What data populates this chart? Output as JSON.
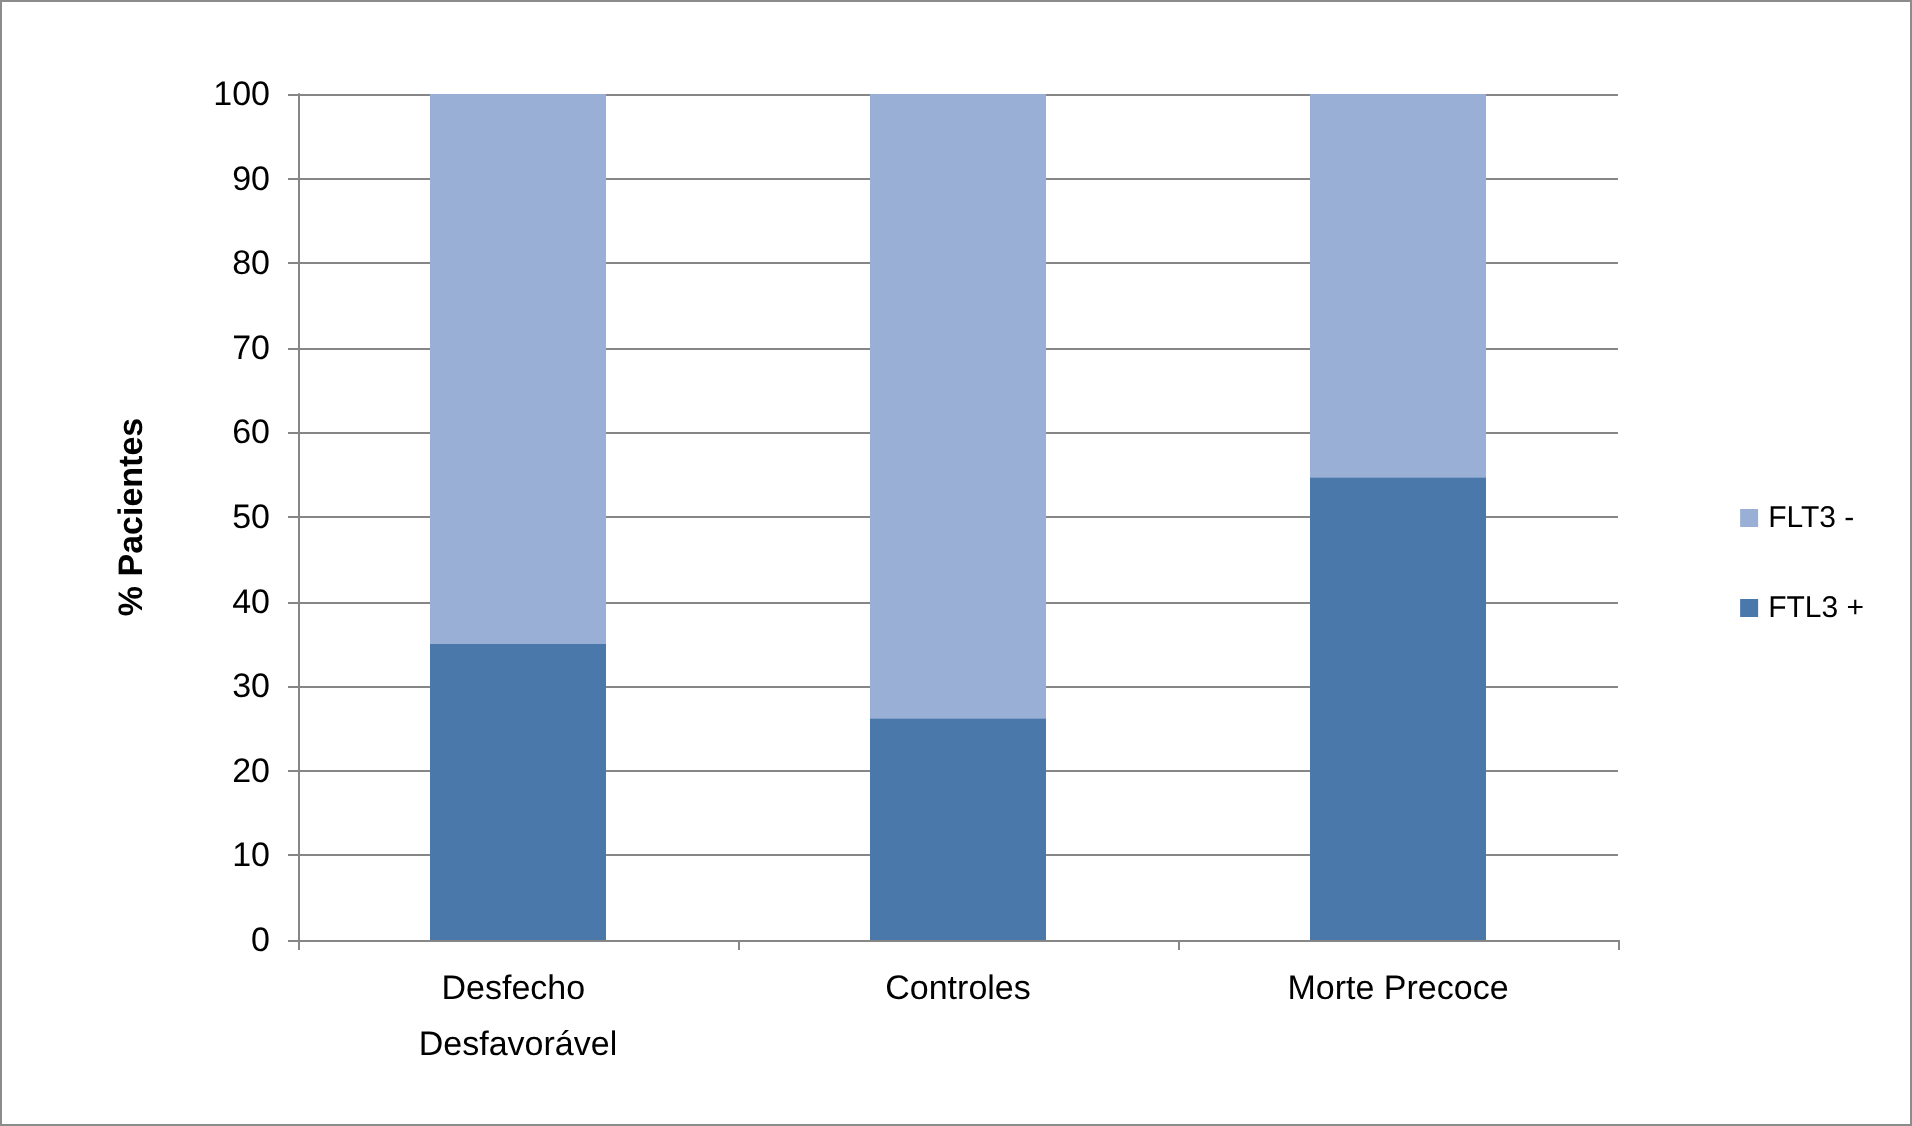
{
  "chart_data": {
    "type": "bar",
    "stacked": true,
    "ylabel": "% Pacientes",
    "categories": [
      "Desfecho Desfavorável",
      "Controles",
      "Morte Precoce"
    ],
    "series": [
      {
        "name": "FTL3 +",
        "color": "#4a78ab",
        "values": [
          35,
          26.2,
          54.7
        ]
      },
      {
        "name": "FLT3 -",
        "color": "#9aafd5",
        "values": [
          65,
          73.8,
          45.3
        ]
      }
    ],
    "ylim": [
      0,
      100
    ],
    "yticks": [
      0,
      10,
      20,
      30,
      40,
      50,
      60,
      70,
      80,
      90,
      100
    ],
    "grid": "y",
    "legend": "right"
  }
}
